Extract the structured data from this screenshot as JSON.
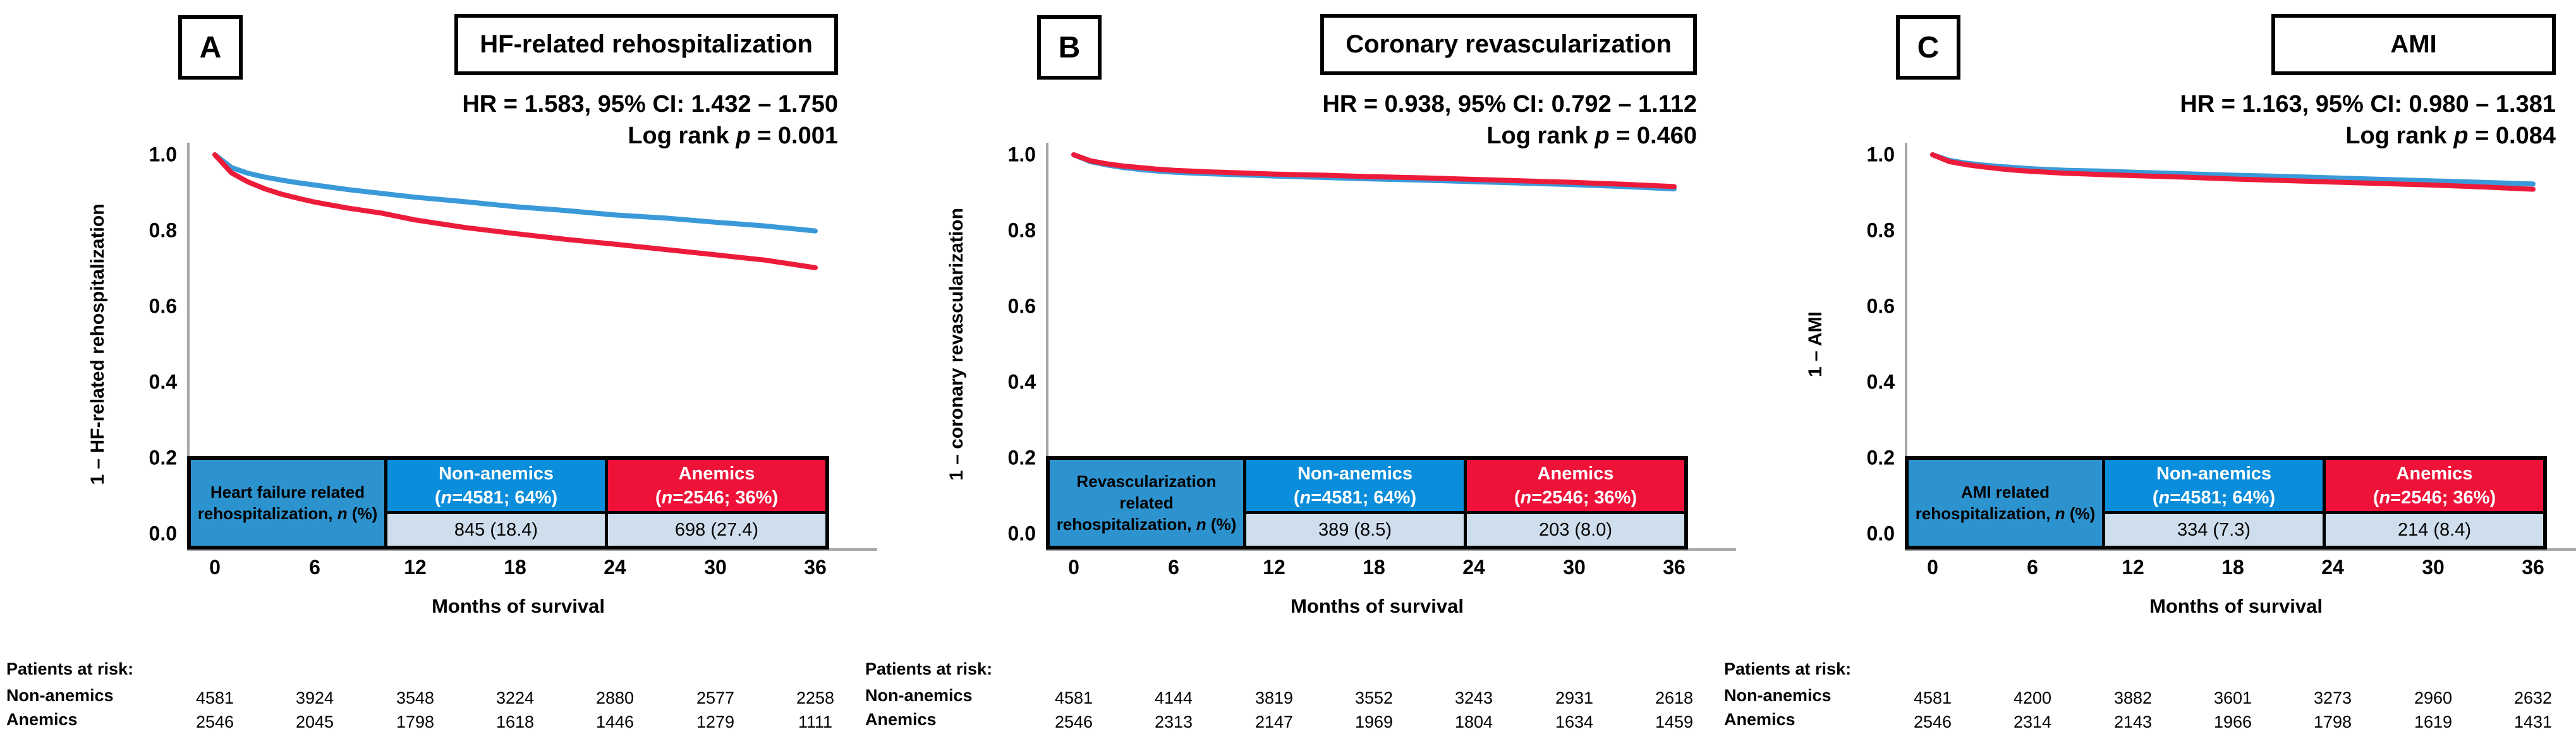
{
  "colors": {
    "non_anemics_curve": "#3a9ad9",
    "anemics_curve": "#ed1b3a",
    "header_blue": "#0a8ddb",
    "header_red": "#ee1238",
    "label_cell_blue": "#2d93cf",
    "value_cell": "#cfdeec",
    "axis_gray": "#a6a6a6"
  },
  "axis": {
    "y_ticks": [
      "1.0",
      "0.8",
      "0.6",
      "0.4",
      "0.2",
      "0.0"
    ],
    "x_ticks": [
      "0",
      "6",
      "12",
      "18",
      "24",
      "30",
      "36"
    ],
    "x_label": "Months of survival"
  },
  "risk": {
    "header": "Patients at risk:",
    "rows": [
      "Non-anemics",
      "Anemics"
    ]
  },
  "panels": [
    {
      "letter": "A",
      "title": "HF-related rehospitalization",
      "y_axis_label": "1 – HF-related rehospitalization",
      "stats": {
        "hr_line": "HR = 1.583, 95% CI: 1.432 – 1.750",
        "logrank_label": "Log rank",
        "p_char": "p",
        "logrank_value": "= 0.001"
      },
      "table": {
        "event_label": "Heart failure related rehospitalization,",
        "n_label": "n",
        "pct_label": "(%)",
        "non_anemics": {
          "label": "Non-anemics",
          "count_prefix": "(",
          "count_n": "n",
          "count_rest": "=4581; 64%)",
          "value": "845 (18.4)"
        },
        "anemics": {
          "label": "Anemics",
          "count_prefix": "(",
          "count_n": "n",
          "count_rest": "=2546; 36%)",
          "value": "698 (27.4)"
        }
      },
      "risk": {
        "non_anemics": [
          "4581",
          "3924",
          "3548",
          "3224",
          "2880",
          "2577",
          "2258"
        ],
        "anemics": [
          "2546",
          "2045",
          "1798",
          "1618",
          "1446",
          "1279",
          "1111"
        ]
      }
    },
    {
      "letter": "B",
      "title": "Coronary revascularization",
      "y_axis_label": "1 – coronary revascularization",
      "stats": {
        "hr_line": "HR = 0.938, 95% CI: 0.792 – 1.112",
        "logrank_label": "Log rank",
        "p_char": "p",
        "logrank_value": "= 0.460"
      },
      "table": {
        "event_label": "Revascularization related rehospitalization,",
        "n_label": "n",
        "pct_label": "(%)",
        "non_anemics": {
          "label": "Non-anemics",
          "count_prefix": "(",
          "count_n": "n",
          "count_rest": "=4581; 64%)",
          "value": "389 (8.5)"
        },
        "anemics": {
          "label": "Anemics",
          "count_prefix": "(",
          "count_n": "n",
          "count_rest": "=2546; 36%)",
          "value": "203 (8.0)"
        }
      },
      "risk": {
        "non_anemics": [
          "4581",
          "4144",
          "3819",
          "3552",
          "3243",
          "2931",
          "2618"
        ],
        "anemics": [
          "2546",
          "2313",
          "2147",
          "1969",
          "1804",
          "1634",
          "1459"
        ]
      }
    },
    {
      "letter": "C",
      "title": "AMI",
      "y_axis_label": "1 – AMI",
      "stats": {
        "hr_line": "HR = 1.163, 95% CI: 0.980 – 1.381",
        "logrank_label": "Log rank",
        "p_char": "p",
        "logrank_value": "= 0.084"
      },
      "table": {
        "event_label": "AMI related rehospitalization,",
        "n_label": "n",
        "pct_label": "(%)",
        "non_anemics": {
          "label": "Non-anemics",
          "count_prefix": "(",
          "count_n": "n",
          "count_rest": "=4581; 64%)",
          "value": "334 (7.3)"
        },
        "anemics": {
          "label": "Anemics",
          "count_prefix": "(",
          "count_n": "n",
          "count_rest": "=2546; 36%)",
          "value": "214 (8.4)"
        }
      },
      "risk": {
        "non_anemics": [
          "4581",
          "4200",
          "3882",
          "3601",
          "3273",
          "2960",
          "2632"
        ],
        "anemics": [
          "2546",
          "2314",
          "2143",
          "1966",
          "1798",
          "1619",
          "1431"
        ]
      }
    }
  ],
  "chart_data": [
    {
      "type": "line",
      "title": "HF-related rehospitalization",
      "xlabel": "Months of survival",
      "ylabel": "1 – HF-related rehospitalization",
      "xlim": [
        0,
        36
      ],
      "ylim": [
        0,
        1
      ],
      "grid": false,
      "legend": "embedded table",
      "x": [
        0,
        1,
        2,
        3,
        4,
        5,
        6,
        8,
        10,
        12,
        15,
        18,
        21,
        24,
        27,
        30,
        33,
        36
      ],
      "series": [
        {
          "name": "Non-anemics",
          "color": "#3a9ad9",
          "values": [
            1.0,
            0.966,
            0.951,
            0.941,
            0.933,
            0.926,
            0.92,
            0.908,
            0.898,
            0.888,
            0.876,
            0.863,
            0.853,
            0.841,
            0.833,
            0.822,
            0.812,
            0.799
          ]
        },
        {
          "name": "Anemics",
          "color": "#ed1b3a",
          "values": [
            1.0,
            0.952,
            0.928,
            0.91,
            0.896,
            0.885,
            0.875,
            0.859,
            0.846,
            0.828,
            0.808,
            0.792,
            0.777,
            0.764,
            0.75,
            0.736,
            0.722,
            0.702
          ]
        }
      ]
    },
    {
      "type": "line",
      "title": "Coronary revascularization",
      "xlabel": "Months of survival",
      "ylabel": "1 – coronary revascularization",
      "xlim": [
        0,
        36
      ],
      "ylim": [
        0,
        1
      ],
      "grid": false,
      "legend": "embedded table",
      "x": [
        0,
        1,
        2,
        3,
        4,
        5,
        6,
        8,
        10,
        12,
        15,
        18,
        21,
        24,
        27,
        30,
        33,
        36
      ],
      "series": [
        {
          "name": "Non-anemics",
          "color": "#3a9ad9",
          "values": [
            1.0,
            0.982,
            0.973,
            0.966,
            0.961,
            0.957,
            0.954,
            0.95,
            0.947,
            0.944,
            0.94,
            0.936,
            0.933,
            0.929,
            0.925,
            0.921,
            0.916,
            0.91
          ]
        },
        {
          "name": "Anemics",
          "color": "#ed1b3a",
          "values": [
            1.0,
            0.984,
            0.976,
            0.97,
            0.966,
            0.962,
            0.959,
            0.955,
            0.952,
            0.949,
            0.946,
            0.942,
            0.939,
            0.935,
            0.931,
            0.927,
            0.922,
            0.916
          ]
        }
      ]
    },
    {
      "type": "line",
      "title": "AMI",
      "xlabel": "Months of survival",
      "ylabel": "1 – AMI",
      "xlim": [
        0,
        36
      ],
      "ylim": [
        0,
        1
      ],
      "grid": false,
      "legend": "embedded table",
      "x": [
        0,
        1,
        2,
        3,
        4,
        5,
        6,
        8,
        10,
        12,
        15,
        18,
        21,
        24,
        27,
        30,
        33,
        36
      ],
      "series": [
        {
          "name": "Non-anemics",
          "color": "#3a9ad9",
          "values": [
            1.0,
            0.985,
            0.978,
            0.973,
            0.969,
            0.966,
            0.963,
            0.959,
            0.957,
            0.954,
            0.95,
            0.946,
            0.943,
            0.939,
            0.935,
            0.931,
            0.927,
            0.923
          ]
        },
        {
          "name": "Anemics",
          "color": "#ed1b3a",
          "values": [
            1.0,
            0.982,
            0.974,
            0.968,
            0.963,
            0.959,
            0.956,
            0.951,
            0.948,
            0.945,
            0.941,
            0.936,
            0.932,
            0.928,
            0.924,
            0.92,
            0.915,
            0.909
          ]
        }
      ]
    }
  ]
}
